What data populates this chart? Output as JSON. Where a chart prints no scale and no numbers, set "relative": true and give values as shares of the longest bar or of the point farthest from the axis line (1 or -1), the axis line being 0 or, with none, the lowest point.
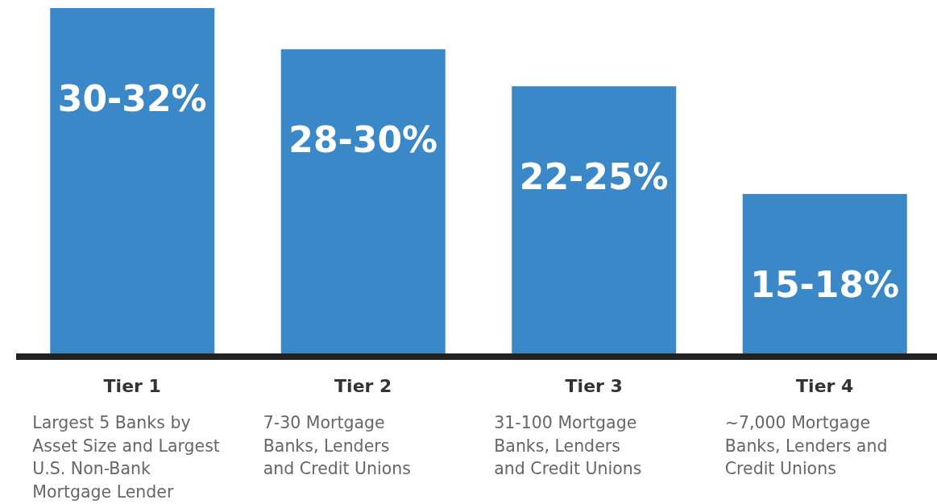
{
  "chart_data": {
    "type": "bar",
    "relative": true,
    "categories": [
      "Tier 1",
      "Tier 2",
      "Tier 3",
      "Tier 4"
    ],
    "values": [
      1,
      0.881,
      0.774,
      0.463
    ],
    "color": "#3b88c8",
    "annotations": [
      "30-32%",
      "28-30%",
      "22-25%",
      "15-18%",
      "Largest 5 Banks by\nAsset Size and Largest\nU.S. Non-Bank\nMortgage Lender",
      "7-30 Mortgage\nBanks, Lenders\nand Credit Unions",
      "31-100 Mortgage\nBanks, Lenders\nand Credit Unions",
      "~7,000 Mortgage\nBanks, Lenders and\nCredit Unions"
    ]
  }
}
